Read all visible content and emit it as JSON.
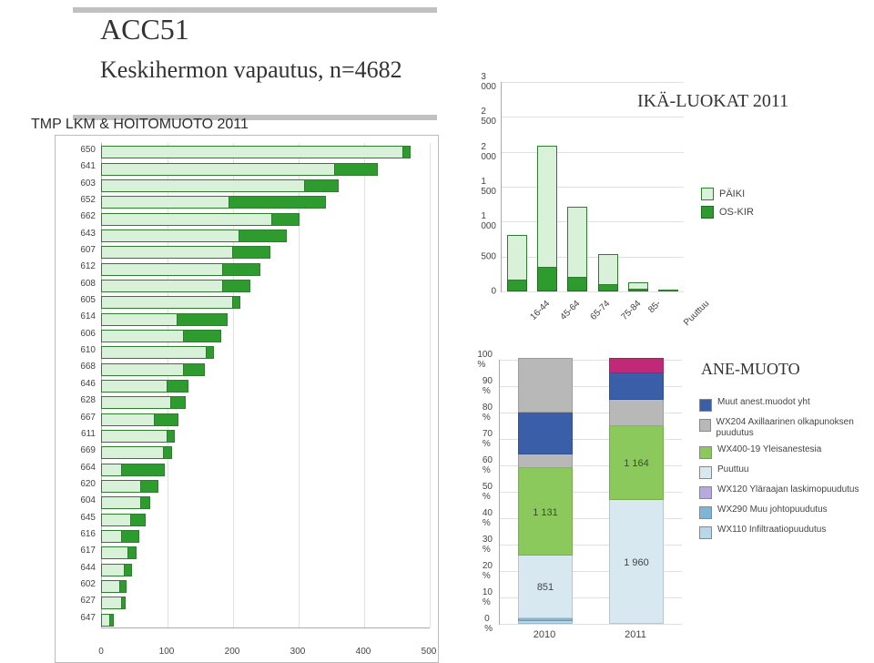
{
  "header": {
    "code": "ACC51",
    "title2": "Keskihermon vapautus, n=4682",
    "left": "TMP LKM & HOITOMUOTO 2011",
    "right": "IKÄ-LUOKAT 2011",
    "ane": "ANE-MUOTO"
  },
  "chart1": {
    "type": "bar-horizontal",
    "xmax": 500,
    "xstep": 100,
    "xticks": [
      0,
      100,
      200,
      300,
      400,
      500
    ],
    "bar_border": "#2e7d2e",
    "fill_colors": {
      "paiki": "#d9f0d9",
      "oskir": "#2e9b2e"
    },
    "rows": [
      {
        "label": "650",
        "paiki": 460,
        "oskir": 10
      },
      {
        "label": "641",
        "paiki": 355,
        "oskir": 65
      },
      {
        "label": "603",
        "paiki": 310,
        "oskir": 50
      },
      {
        "label": "652",
        "paiki": 195,
        "oskir": 145
      },
      {
        "label": "662",
        "paiki": 260,
        "oskir": 40
      },
      {
        "label": "643",
        "paiki": 210,
        "oskir": 70
      },
      {
        "label": "607",
        "paiki": 200,
        "oskir": 55
      },
      {
        "label": "612",
        "paiki": 185,
        "oskir": 55
      },
      {
        "label": "608",
        "paiki": 185,
        "oskir": 40
      },
      {
        "label": "605",
        "paiki": 200,
        "oskir": 10
      },
      {
        "label": "614",
        "paiki": 115,
        "oskir": 75
      },
      {
        "label": "606",
        "paiki": 125,
        "oskir": 55
      },
      {
        "label": "610",
        "paiki": 160,
        "oskir": 10
      },
      {
        "label": "668",
        "paiki": 125,
        "oskir": 30
      },
      {
        "label": "646",
        "paiki": 100,
        "oskir": 30
      },
      {
        "label": "628",
        "paiki": 105,
        "oskir": 22
      },
      {
        "label": "667",
        "paiki": 80,
        "oskir": 35
      },
      {
        "label": "611",
        "paiki": 100,
        "oskir": 10
      },
      {
        "label": "669",
        "paiki": 95,
        "oskir": 10
      },
      {
        "label": "664",
        "paiki": 30,
        "oskir": 65
      },
      {
        "label": "620",
        "paiki": 60,
        "oskir": 25
      },
      {
        "label": "604",
        "paiki": 60,
        "oskir": 12
      },
      {
        "label": "645",
        "paiki": 45,
        "oskir": 20
      },
      {
        "label": "616",
        "paiki": 30,
        "oskir": 25
      },
      {
        "label": "617",
        "paiki": 40,
        "oskir": 12
      },
      {
        "label": "644",
        "paiki": 35,
        "oskir": 10
      },
      {
        "label": "602",
        "paiki": 28,
        "oskir": 8
      },
      {
        "label": "627",
        "paiki": 30,
        "oskir": 5
      },
      {
        "label": "647",
        "paiki": 12,
        "oskir": 5
      }
    ]
  },
  "chart2": {
    "type": "column-stacked",
    "ymax": 3000,
    "ystep": 500,
    "yticks": [
      0,
      500,
      1000,
      1500,
      2000,
      2500,
      3000
    ],
    "categories": [
      "16-44",
      "45-64",
      "65-74",
      "75-84",
      "85-",
      "Puuttuu"
    ],
    "series": [
      {
        "name": "PÄIKI",
        "color": "#d9f0d9",
        "border": "#2e7d2e"
      },
      {
        "name": "OS-KIR",
        "color": "#2e9b2e",
        "border": "#1e6b1e"
      }
    ],
    "data": {
      "paiki": [
        620,
        1720,
        1000,
        420,
        90,
        0
      ],
      "oskir": [
        160,
        340,
        190,
        90,
        20,
        0
      ]
    }
  },
  "chart3": {
    "type": "column-100pct-stacked",
    "yticks": [
      0,
      10,
      20,
      30,
      40,
      50,
      60,
      70,
      80,
      90,
      100
    ],
    "ytick_labels": [
      "0 %",
      "10 %",
      "20 %",
      "30 %",
      "40 %",
      "50 %",
      "60 %",
      "70 %",
      "80 %",
      "90 %",
      "100 %"
    ],
    "categories": [
      "2010",
      "2011"
    ],
    "series": [
      {
        "key": "wx110",
        "name": "WX110 Infiltraatiopuudutus",
        "color": "#b8d8e8"
      },
      {
        "key": "wx290",
        "name": "WX290 Muu johtopuudutus",
        "color": "#7eb6d8"
      },
      {
        "key": "wx120",
        "name": "WX120 Yläraajan laskimopuudutus",
        "color": "#b8a8e0"
      },
      {
        "key": "puuttuu",
        "name": "Puuttuu",
        "color": "#d8e8f0"
      },
      {
        "key": "wx400",
        "name": "WX400-19 Yleisanestesia",
        "color": "#8cc95c"
      },
      {
        "key": "wx204",
        "name": "WX204 Axillaarinen olkapunoksen puudutus",
        "color": "#b8b8b8"
      },
      {
        "key": "muut",
        "name": "Muut anest.muodot yht",
        "color": "#3a5fa8"
      },
      {
        "key": "top",
        "name": "",
        "color": "#c02878"
      }
    ],
    "columns": [
      {
        "category": "2010",
        "total_label_a": "1 131",
        "total_label_b": "851",
        "segs": [
          {
            "key": "wx110",
            "pct": 1
          },
          {
            "key": "wx290",
            "pct": 1
          },
          {
            "key": "wx120",
            "pct": 0
          },
          {
            "key": "puuttuu",
            "pct": 24,
            "label": "851"
          },
          {
            "key": "wx400",
            "pct": 33,
            "label": "1 131"
          },
          {
            "key": "wx204",
            "pct": 5
          },
          {
            "key": "muut",
            "pct": 16
          },
          {
            "key": "top",
            "pct": 20,
            "color_override": "#b8b8b8"
          }
        ]
      },
      {
        "category": "2011",
        "total_label_a": "1 164",
        "total_label_b": "1 960",
        "segs": [
          {
            "key": "wx110",
            "pct": 0
          },
          {
            "key": "wx290",
            "pct": 0
          },
          {
            "key": "wx120",
            "pct": 0
          },
          {
            "key": "puuttuu",
            "pct": 47,
            "label": "1 960"
          },
          {
            "key": "wx400",
            "pct": 28,
            "label": "1 164"
          },
          {
            "key": "wx204",
            "pct": 10
          },
          {
            "key": "muut",
            "pct": 10
          },
          {
            "key": "top",
            "pct": 5,
            "color_override": "#c02878"
          }
        ]
      }
    ],
    "legend_order": [
      "muut",
      "wx204",
      "wx400",
      "puuttuu",
      "wx120",
      "wx290",
      "wx110"
    ]
  }
}
